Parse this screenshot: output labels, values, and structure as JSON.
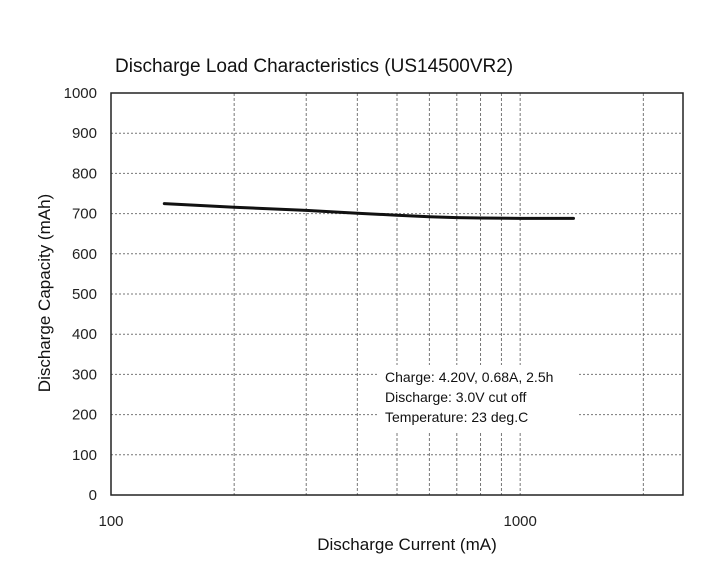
{
  "chart_data": {
    "type": "line",
    "title": "Discharge Load Characteristics (US14500VR2)",
    "xlabel": "Discharge Current (mA)",
    "ylabel": "Discharge Capacity (mAh)",
    "x_scale": "log",
    "xlim": [
      100,
      2500
    ],
    "ylim": [
      0,
      1000
    ],
    "x_tick_labels": [
      "100",
      "1000"
    ],
    "y_ticks": [
      0,
      100,
      200,
      300,
      400,
      500,
      600,
      700,
      800,
      900,
      1000
    ],
    "x_gridlines": [
      200,
      300,
      400,
      500,
      600,
      700,
      800,
      900,
      1000,
      2000
    ],
    "grid": true,
    "series": [
      {
        "color": "#111111",
        "x": [
          135,
          200,
          300,
          400,
          500,
          600,
          700,
          800,
          1000,
          1200,
          1350
        ],
        "y": [
          725,
          716,
          708,
          701,
          696,
          692,
          690,
          689,
          688,
          688,
          688
        ]
      }
    ],
    "annotations": [
      "Charge: 4.20V, 0.68A, 2.5h",
      "Discharge: 3.0V cut off",
      "Temperature: 23 deg.C"
    ]
  }
}
